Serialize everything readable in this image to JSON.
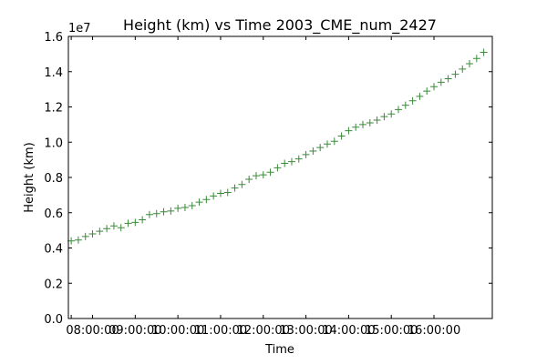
{
  "chart_data": {
    "type": "scatter",
    "title": "Height (km) vs Time 2003_CME_num_2427",
    "xlabel": "Time",
    "ylabel": "Height (km)",
    "y_scale_label": "1e7",
    "xlim": [
      "07:26:00",
      "17:22:00"
    ],
    "ylim": [
      0,
      16000000
    ],
    "grid": false,
    "marker": "+",
    "color": "#3a8a3a",
    "x_ticks": [
      "07:30:00",
      "08:00:00",
      "09:00:00",
      "10:00:00",
      "11:00:00",
      "12:00:00",
      "13:00:00",
      "14:00:00",
      "15:00:00",
      "16:00:00"
    ],
    "x_tick_labels": [
      "",
      "08:00:00",
      "09:00:00",
      "10:00:00",
      "11:00:00",
      "12:00:00",
      "13:00:00",
      "14:00:00",
      "15:00:00",
      "16:00:00"
    ],
    "y_ticks": [
      0,
      2000000,
      4000000,
      6000000,
      8000000,
      10000000,
      12000000,
      14000000,
      16000000
    ],
    "y_tick_labels": [
      "0.0",
      "0.2",
      "0.4",
      "0.6",
      "0.8",
      "1.0",
      "1.2",
      "1.4",
      "1.6"
    ],
    "series": [
      {
        "x": [
          "07:30:00",
          "07:40:00",
          "07:50:00",
          "08:00:00",
          "08:10:00",
          "08:20:00",
          "08:30:00",
          "08:40:00",
          "08:50:00",
          "09:00:00",
          "09:10:00",
          "09:20:00",
          "09:30:00",
          "09:40:00",
          "09:50:00",
          "10:00:00",
          "10:10:00",
          "10:20:00",
          "10:30:00",
          "10:40:00",
          "10:50:00",
          "11:00:00",
          "11:10:00",
          "11:20:00",
          "11:30:00",
          "11:40:00",
          "11:50:00",
          "12:00:00",
          "12:10:00",
          "12:20:00",
          "12:30:00",
          "12:40:00",
          "12:50:00",
          "13:00:00",
          "13:10:00",
          "13:20:00",
          "13:30:00",
          "13:40:00",
          "13:50:00",
          "14:00:00",
          "14:10:00",
          "14:20:00",
          "14:30:00",
          "14:40:00",
          "14:50:00",
          "15:00:00",
          "15:10:00",
          "15:20:00",
          "15:30:00",
          "15:40:00",
          "15:50:00",
          "16:00:00",
          "16:10:00",
          "16:20:00",
          "16:30:00",
          "16:40:00",
          "16:50:00",
          "17:00:00",
          "17:10:00"
        ],
        "y": [
          4400000,
          4450000,
          4650000,
          4800000,
          4950000,
          5100000,
          5250000,
          5150000,
          5400000,
          5450000,
          5600000,
          5900000,
          5950000,
          6050000,
          6100000,
          6250000,
          6300000,
          6400000,
          6600000,
          6750000,
          6950000,
          7100000,
          7150000,
          7400000,
          7600000,
          7900000,
          8100000,
          8150000,
          8300000,
          8550000,
          8800000,
          8900000,
          9050000,
          9300000,
          9500000,
          9700000,
          9900000,
          10050000,
          10350000,
          10650000,
          10850000,
          11000000,
          11100000,
          11250000,
          11450000,
          11600000,
          11850000,
          12100000,
          12350000,
          12600000,
          12900000,
          13150000,
          13400000,
          13600000,
          13850000,
          14150000,
          14450000,
          14750000,
          15100000
        ]
      }
    ]
  }
}
